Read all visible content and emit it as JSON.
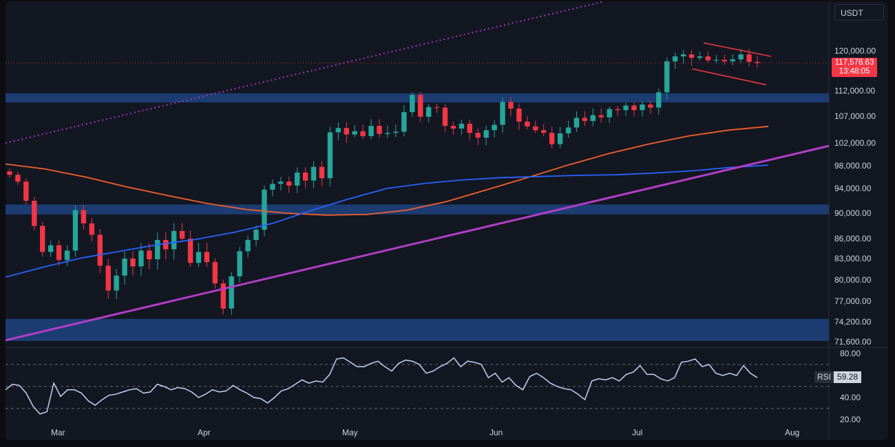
{
  "currency": "USDT",
  "current_price": "117,578.63",
  "countdown": "13:48:05",
  "colors": {
    "up": "#26a69a",
    "down": "#f23645",
    "zone": "#1e4380",
    "ema_orange": "#f5602b",
    "sma_blue": "#2962ff",
    "trendline": "#b23ec7",
    "flag": "#f23645",
    "rsi_line": "#c8d3f5"
  },
  "chart_data": [
    {
      "type": "candlestick",
      "title": "",
      "y_ticks": [
        "120,000.00",
        "112,000.00",
        "107,000.00",
        "102,000.00",
        "98,000.00",
        "94,000.00",
        "90,000.00",
        "86,000.00",
        "83,000.00",
        "80,000.00",
        "77,000.00",
        "74,200.00",
        "71,600.00"
      ],
      "x_ticks": [
        "Mar",
        "Apr",
        "May",
        "Jun",
        "Jul",
        "Aug"
      ],
      "close_series_approx": [
        96400,
        95200,
        92000,
        88000,
        84000,
        85000,
        82800,
        84200,
        90500,
        88400,
        86600,
        82000,
        78500,
        80600,
        83000,
        81900,
        84200,
        82900,
        85800,
        84400,
        87200,
        86000,
        82400,
        84000,
        82500,
        79500,
        76000,
        80500,
        84100,
        85800,
        87400,
        93800,
        94800,
        95200,
        94500,
        96800,
        95400,
        97800,
        95800,
        104000,
        104800,
        103600,
        104200,
        103300,
        105200,
        103700,
        103900,
        104100,
        107800,
        111200,
        106900,
        108800,
        108700,
        105200,
        104700,
        105600,
        103900,
        103000,
        104400,
        105400,
        109800,
        108500,
        106000,
        105100,
        104400,
        103900,
        101800,
        103800,
        104900,
        106700,
        106100,
        107200,
        106800,
        108400,
        108200,
        109100,
        108200,
        109300,
        108700,
        111700,
        117900,
        118900,
        119300,
        118600,
        118900,
        118100,
        118200,
        117900,
        118300,
        119300,
        117800,
        117579
      ],
      "series": [
        {
          "name": "",
          "kind": "ema",
          "values_approx": [
            98300,
            97400,
            96000,
            94300,
            92900,
            91600,
            90600,
            90000,
            89700,
            89800,
            90500,
            91900,
            93800,
            95900,
            98100,
            100100,
            101800,
            103300,
            104400,
            105100
          ]
        },
        {
          "name": "",
          "kind": "sma",
          "values_approx": [
            80400,
            81800,
            83100,
            84100,
            85100,
            85900,
            87000,
            88400,
            90400,
            92300,
            94000,
            94900,
            95500,
            95900,
            96100,
            96300,
            96400,
            96700,
            97100,
            97700,
            98100
          ]
        }
      ],
      "zones": [
        [
          109700,
          111500
        ],
        [
          89800,
          91400
        ],
        [
          71700,
          74600
        ]
      ],
      "trendline": [
        [
          71800
        ],
        [
          101500
        ]
      ],
      "flag": {
        "upper": [
          121600,
          118900
        ],
        "lower": [
          116400,
          113200
        ]
      }
    },
    {
      "type": "line",
      "title": "",
      "series": [
        {
          "name": "RSI",
          "last_value": "59.28",
          "values_approx": [
            47,
            52,
            51,
            44,
            32,
            25,
            27,
            53,
            41,
            47,
            47,
            44,
            37,
            33,
            38,
            42,
            43,
            45,
            47,
            48,
            44,
            45,
            52,
            50,
            47,
            49,
            48,
            45,
            40,
            43,
            47,
            45,
            46,
            51,
            47,
            44,
            40,
            39,
            35,
            40,
            46,
            48,
            52,
            56,
            53,
            55,
            54,
            61,
            75,
            76,
            72,
            68,
            68,
            71,
            73,
            68,
            64,
            71,
            74,
            73,
            70,
            62,
            64,
            68,
            71,
            76,
            68,
            73,
            72,
            70,
            58,
            62,
            54,
            58,
            51,
            47,
            59,
            62,
            58,
            53,
            50,
            48,
            47,
            43,
            38,
            55,
            57,
            56,
            58,
            55,
            61,
            63,
            69,
            61,
            61,
            57,
            55,
            58,
            72,
            73,
            75,
            68,
            70,
            62,
            60,
            62,
            60,
            69,
            62,
            58
          ]
        }
      ],
      "y_ticks": [
        "80.00",
        "40.00",
        "20.00"
      ],
      "guide_levels": [
        70,
        50,
        30
      ]
    }
  ]
}
